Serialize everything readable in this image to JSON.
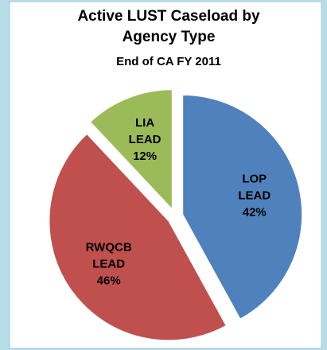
{
  "chart_data": {
    "type": "pie",
    "title": "Active LUST Caseload by Agency Type",
    "subtitle": "End of CA FY 2011",
    "categories": [
      "LOP LEAD",
      "RWQCB LEAD",
      "LIA LEAD"
    ],
    "values": [
      42,
      46,
      12
    ],
    "value_labels": [
      "42%",
      "46%",
      "12%"
    ],
    "colors": [
      "#4f81bd",
      "#c0504d",
      "#9bbb59"
    ]
  }
}
